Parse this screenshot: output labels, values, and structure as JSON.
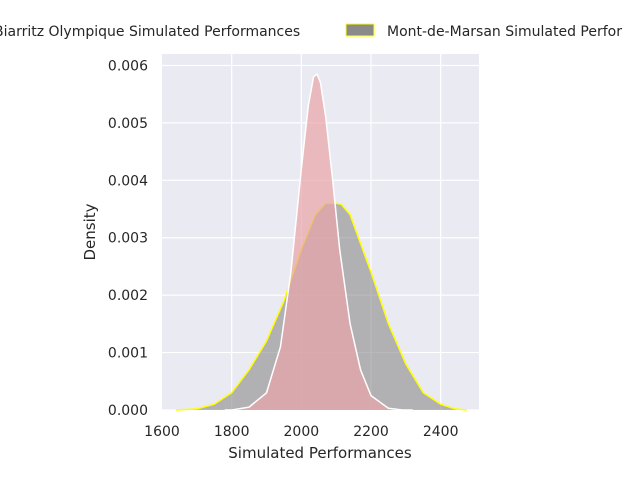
{
  "chart_data": {
    "type": "area",
    "title": "",
    "xlabel": "Simulated Performances",
    "ylabel": "Density",
    "xlim": [
      1600,
      2510
    ],
    "ylim": [
      0,
      0.0062
    ],
    "x_ticks": [
      1600,
      1800,
      2000,
      2200,
      2400
    ],
    "x_tick_labels": [
      "1600",
      "1800",
      "2000",
      "2200",
      "2400"
    ],
    "y_ticks": [
      0,
      0.001,
      0.002,
      0.003,
      0.004,
      0.005,
      0.006
    ],
    "y_tick_labels": [
      "0.000",
      "0.001",
      "0.002",
      "0.003",
      "0.004",
      "0.005",
      "0.006"
    ],
    "grid": true,
    "legend_position": "top",
    "series": [
      {
        "name": "Biarritz Olympique Simulated Performances",
        "legend_label": "Biarritz Olympique Simulated Performances",
        "fill": "#e8a4a8",
        "stroke": "#ffffff",
        "x": [
          1780,
          1800,
          1850,
          1900,
          1940,
          1970,
          2000,
          2020,
          2035,
          2045,
          2055,
          2070,
          2090,
          2110,
          2140,
          2170,
          2200,
          2250,
          2290,
          2320
        ],
        "y": [
          0.0,
          0.0,
          5e-05,
          0.0003,
          0.0011,
          0.0024,
          0.0042,
          0.0053,
          0.0058,
          0.00585,
          0.0057,
          0.0051,
          0.004,
          0.0028,
          0.0015,
          0.0007,
          0.00025,
          3e-05,
          0.0,
          0.0
        ]
      },
      {
        "name": "Mont-de-Marsan Simulated Performances",
        "legend_label": "Mont-de-Marsan Simulated Perfor",
        "fill": "#8a8a8a",
        "stroke": "#ffff00",
        "x": [
          1640,
          1700,
          1750,
          1800,
          1850,
          1900,
          1950,
          2000,
          2040,
          2070,
          2100,
          2115,
          2140,
          2170,
          2200,
          2250,
          2300,
          2350,
          2400,
          2440,
          2475
        ],
        "y": [
          0.0,
          2e-05,
          0.0001,
          0.0003,
          0.0007,
          0.0012,
          0.0019,
          0.0028,
          0.0034,
          0.0036,
          0.0036,
          0.00358,
          0.0034,
          0.0029,
          0.0024,
          0.0015,
          0.0008,
          0.0003,
          0.0001,
          2e-05,
          0.0
        ]
      }
    ]
  }
}
